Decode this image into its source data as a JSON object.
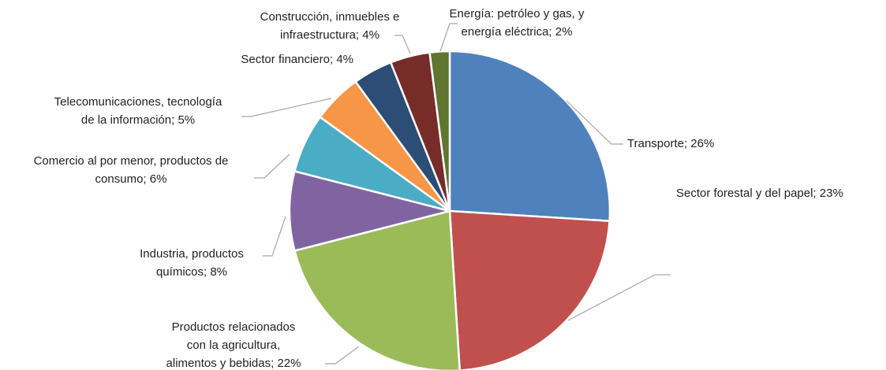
{
  "chart_data": {
    "type": "pie",
    "values": [
      26,
      23,
      22,
      8,
      6,
      5,
      4,
      4,
      2
    ],
    "value_labels": [
      [
        "Transporte; 26%"
      ],
      [
        "Sector forestal y del papel; 23%"
      ],
      [
        "Productos relacionados",
        "con la agricultura,",
        "alimentos y bebidas; 22%"
      ],
      [
        "Industria, productos",
        "químicos; 8%"
      ],
      [
        "Comercio al por menor, productos de",
        "consumo; 6%"
      ],
      [
        "Telecomunicaciones, tecnología",
        "de la información; 5%"
      ],
      [
        "Sector financiero; 4%"
      ],
      [
        "Construcción, inmuebles e",
        "infraestructura; 4%"
      ],
      [
        "Energía: petróleo y gas, y",
        "energía eléctrica; 2%"
      ]
    ],
    "colors": [
      "#4f81bd",
      "#c0504d",
      "#9bbb59",
      "#8064a2",
      "#4bacc6",
      "#f79646",
      "#2c4d75",
      "#772c2a",
      "#5f7530"
    ]
  }
}
